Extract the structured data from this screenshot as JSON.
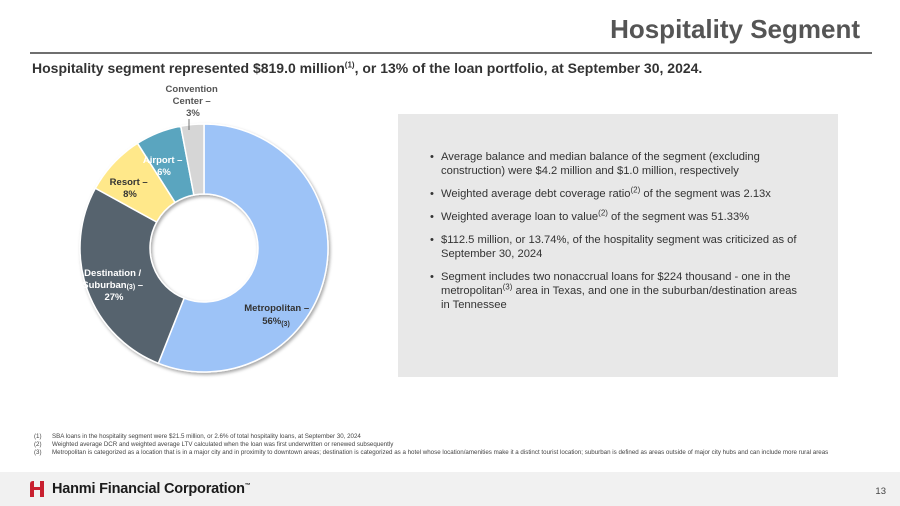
{
  "header": {
    "title": "Hospitality Segment",
    "subtitle_pre": "Hospitality segment represented $819.0 million",
    "subtitle_sup": "(1)",
    "subtitle_post": ", or 13% of the loan portfolio, at September 30, 2024."
  },
  "chart_data": {
    "type": "pie",
    "style": "donut",
    "categories": [
      "Metropolitan",
      "Destination / Suburban",
      "Resort",
      "Airport",
      "Convention Center"
    ],
    "values": [
      56,
      27,
      8,
      6,
      3
    ],
    "colors": [
      "#9dc3f7",
      "#56636e",
      "#ffe88a",
      "#5aa5bf",
      "#d6d6d6"
    ],
    "labels": {
      "metropolitan": [
        "Metropolitan –",
        "56%"
      ],
      "metropolitan_sup": "(3)",
      "destination": [
        "Destination /",
        "Suburban",
        "27%"
      ],
      "destination_sup": "(3)",
      "destination_dash": " –",
      "resort": [
        "Resort –",
        "8%"
      ],
      "airport": [
        "Airport –",
        "6%"
      ],
      "convention": [
        "Convention",
        "Center –",
        "3%"
      ]
    }
  },
  "info": {
    "bullets": [
      {
        "pre": "Average balance and median balance of the segment (excluding construction) were $4.2 million and $1.0 million, respectively",
        "sup": "",
        "post": ""
      },
      {
        "pre": "Weighted average debt coverage ratio",
        "sup": "(2)",
        "post": " of the segment was 2.13x"
      },
      {
        "pre": "Weighted average loan to value",
        "sup": "(2)",
        "post": " of the segment was 51.33%"
      },
      {
        "pre": "$112.5 million, or 13.74%, of the hospitality segment was criticized as of September 30, 2024",
        "sup": "",
        "post": ""
      },
      {
        "pre": "Segment includes two nonaccrual loans for $224 thousand - one in the metropolitan",
        "sup": "(3)",
        "post": " area in Texas, and one in the suburban/destination areas in Tennessee"
      }
    ]
  },
  "footnotes": [
    {
      "num": "(1)",
      "text": "SBA loans in the hospitality segment were $21.5 million, or 2.6% of total hospitality loans, at September 30, 2024"
    },
    {
      "num": "(2)",
      "text": "Weighted average DCR and weighted average LTV calculated when the loan was first underwritten or renewed subsequently"
    },
    {
      "num": "(3)",
      "text": "Metropolitan is categorized as a location that is in a major city and in proximity to downtown areas; destination is categorized as a hotel whose location/amenities make it a distinct tourist location; suburban is defined as areas outside of major city hubs and can include more rural areas"
    }
  ],
  "footer": {
    "company": "Hanmi Financial Corporation",
    "tm": "™",
    "page": "13",
    "logo_color": "#c8202f",
    "logo_icon": "hanmi-h-logo-icon"
  }
}
